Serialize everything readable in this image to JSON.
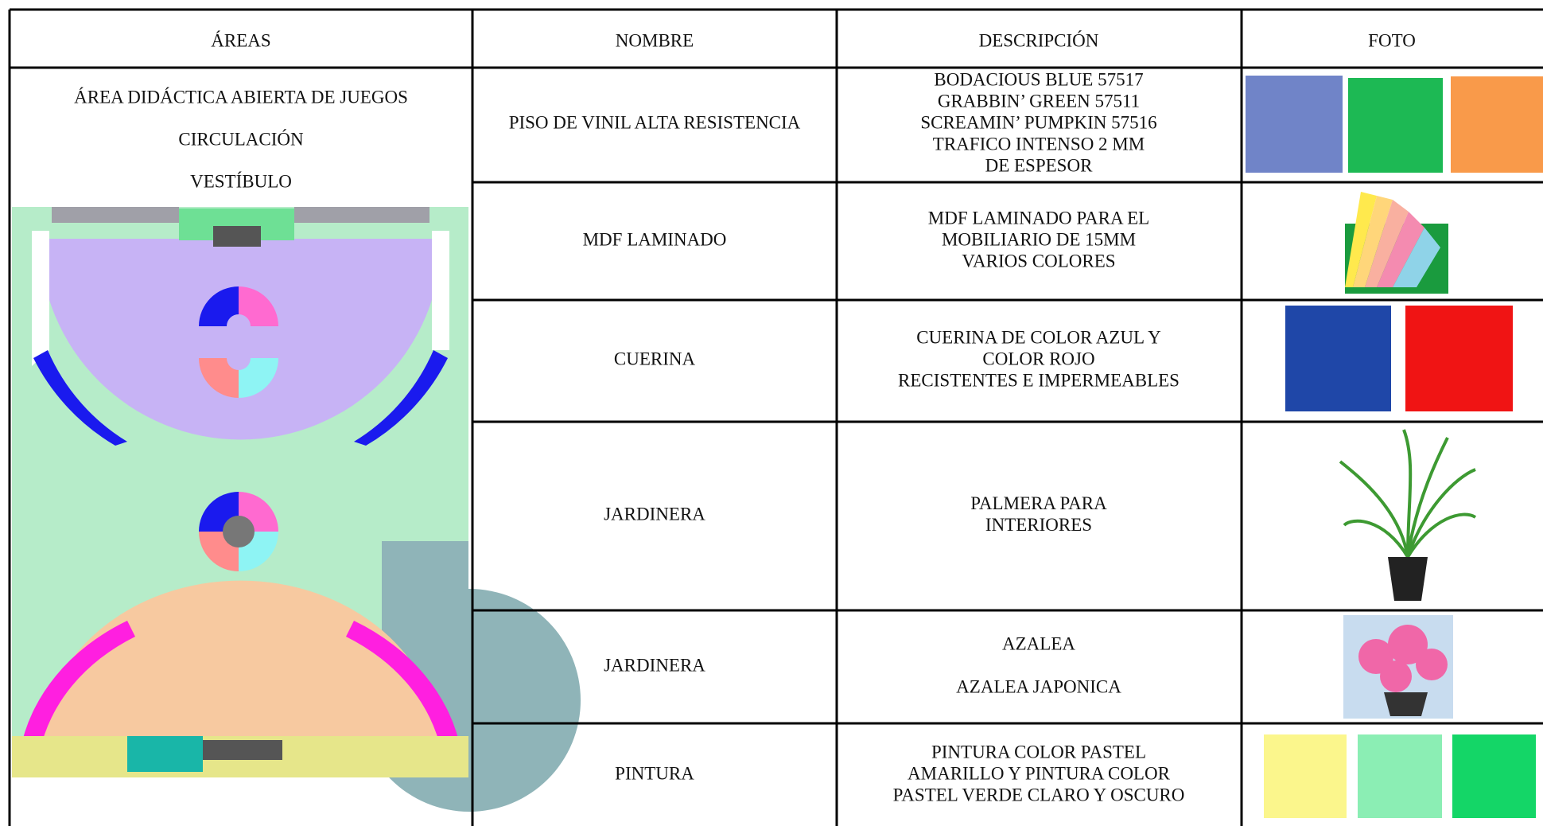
{
  "header": {
    "columns": [
      "ÁREAS",
      "NOMBRE",
      "DESCRIPCIÓN",
      "FOTO"
    ]
  },
  "table": {
    "areas": [
      "ÁREA DIDÁCTICA ABIERTA DE JUEGOS",
      "CIRCULACIÓN",
      "VESTÍBULO"
    ],
    "rows": [
      {
        "nombre": "PISO DE VINIL ALTA RESISTENCIA",
        "descripcion": [
          "BODACIOUS BLUE 57517",
          "GRABBIN’ GREEN 57511",
          "SCREAMIN’ PUMPKIN 57516",
          "TRAFICO INTENSO 2 MM",
          "DE ESPESOR"
        ]
      },
      {
        "nombre": "MDF LAMINADO",
        "descripcion": [
          "MDF LAMINADO PARA EL",
          "MOBILIARIO DE 15MM",
          "VARIOS COLORES"
        ]
      },
      {
        "nombre": "CUERINA",
        "descripcion": [
          "CUERINA DE COLOR AZUL Y",
          "COLOR ROJO",
          "RECISTENTES E IMPERMEABLES"
        ]
      },
      {
        "nombre": "JARDINERA",
        "descripcion": [
          "PALMERA PARA",
          "INTERIORES"
        ]
      },
      {
        "nombre": "JARDINERA",
        "descripcion": [
          "AZALEA",
          "AZALEA JAPONICA"
        ]
      },
      {
        "nombre": "PINTURA",
        "descripcion": [
          "PINTURA COLOR PASTEL",
          "AMARILLO Y PINTURA COLOR",
          "PASTEL VERDE CLARO Y OSCURO"
        ]
      }
    ]
  }
}
